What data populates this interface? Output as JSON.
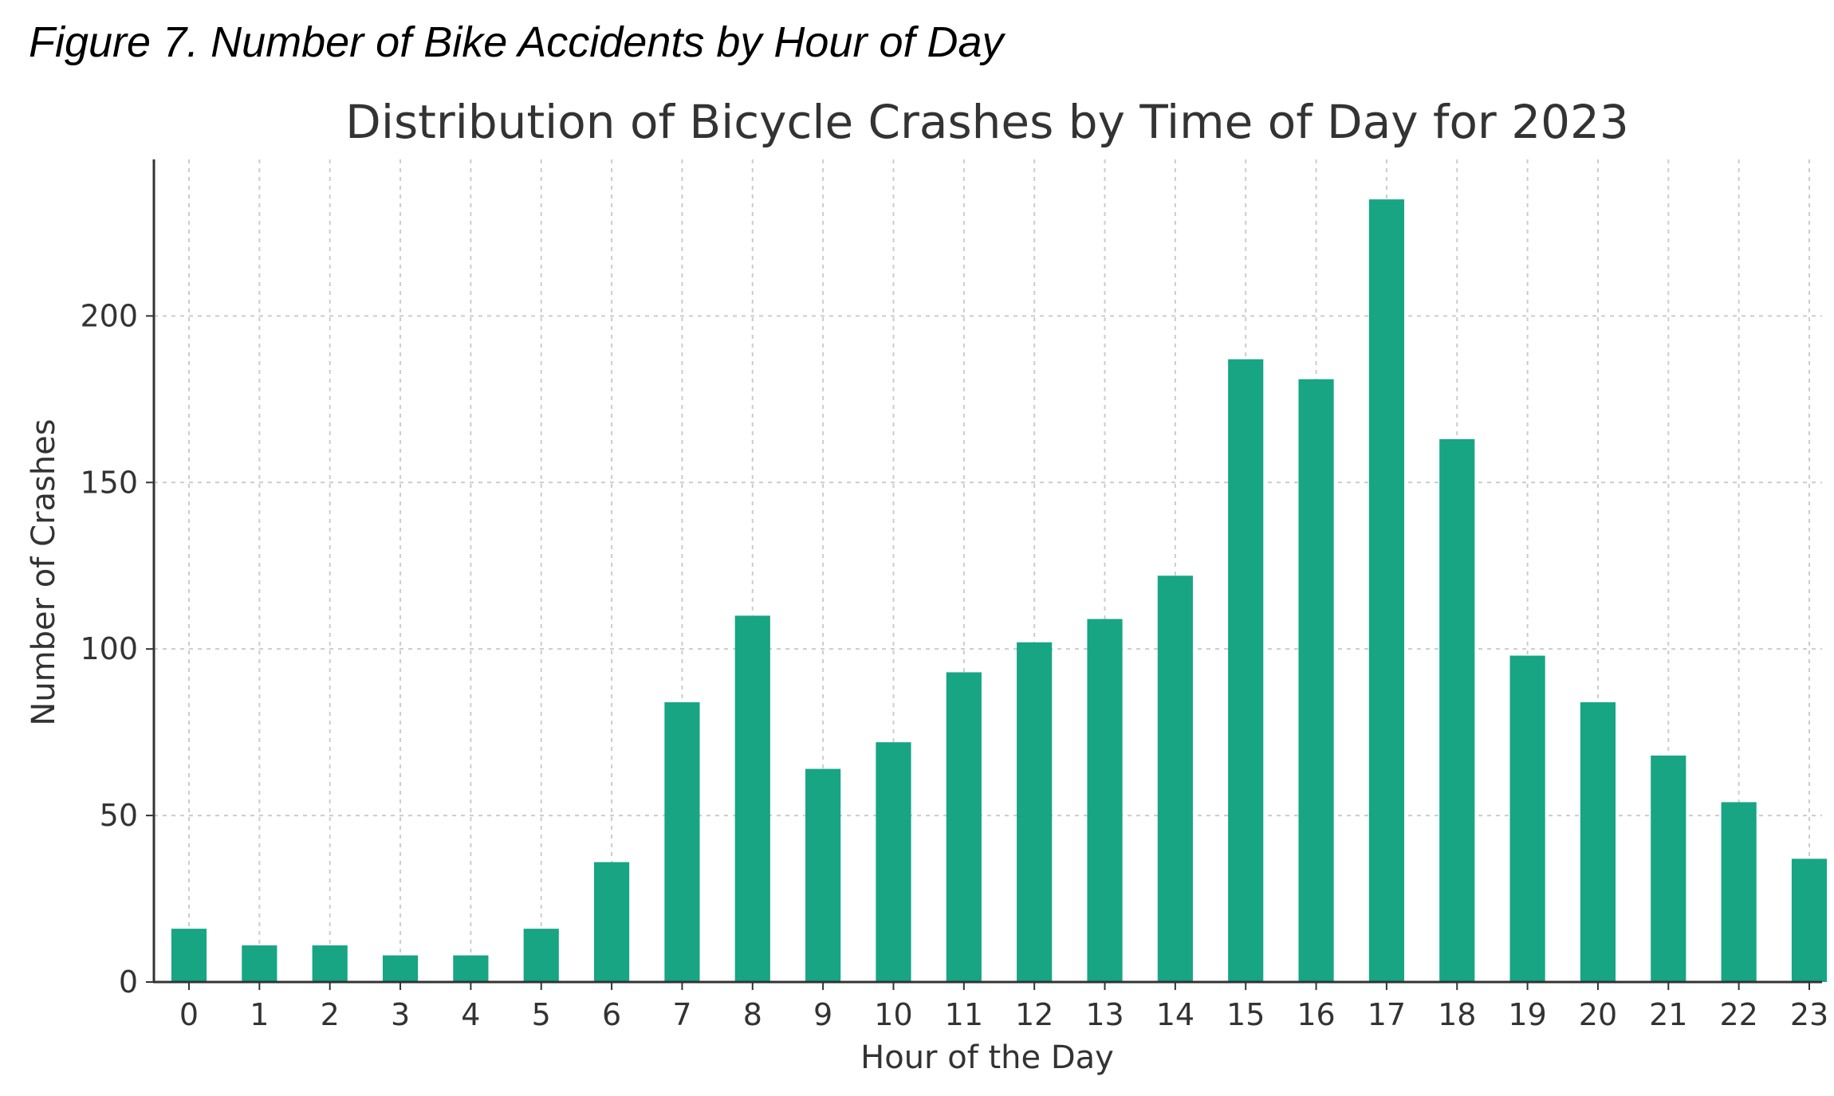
{
  "figure_caption": "Figure 7. Number of Bike Accidents by Hour of Day",
  "colors": {
    "bar": "#17a584",
    "axis": "#333333",
    "grid": "#cccccc"
  },
  "chart_data": {
    "type": "bar",
    "title": "Distribution of Bicycle Crashes by Time of Day for 2023",
    "xlabel": "Hour of the Day",
    "ylabel": "Number of Crashes",
    "categories": [
      "0",
      "1",
      "2",
      "3",
      "4",
      "5",
      "6",
      "7",
      "8",
      "9",
      "10",
      "11",
      "12",
      "13",
      "14",
      "15",
      "16",
      "17",
      "18",
      "19",
      "20",
      "21",
      "22",
      "23"
    ],
    "values": [
      16,
      11,
      11,
      8,
      8,
      16,
      36,
      84,
      110,
      64,
      72,
      93,
      102,
      109,
      122,
      187,
      181,
      235,
      163,
      98,
      84,
      68,
      54,
      37
    ],
    "ylim": [
      0,
      247
    ],
    "yticks": [
      0,
      50,
      100,
      150,
      200
    ],
    "grid": true,
    "legend": null
  }
}
